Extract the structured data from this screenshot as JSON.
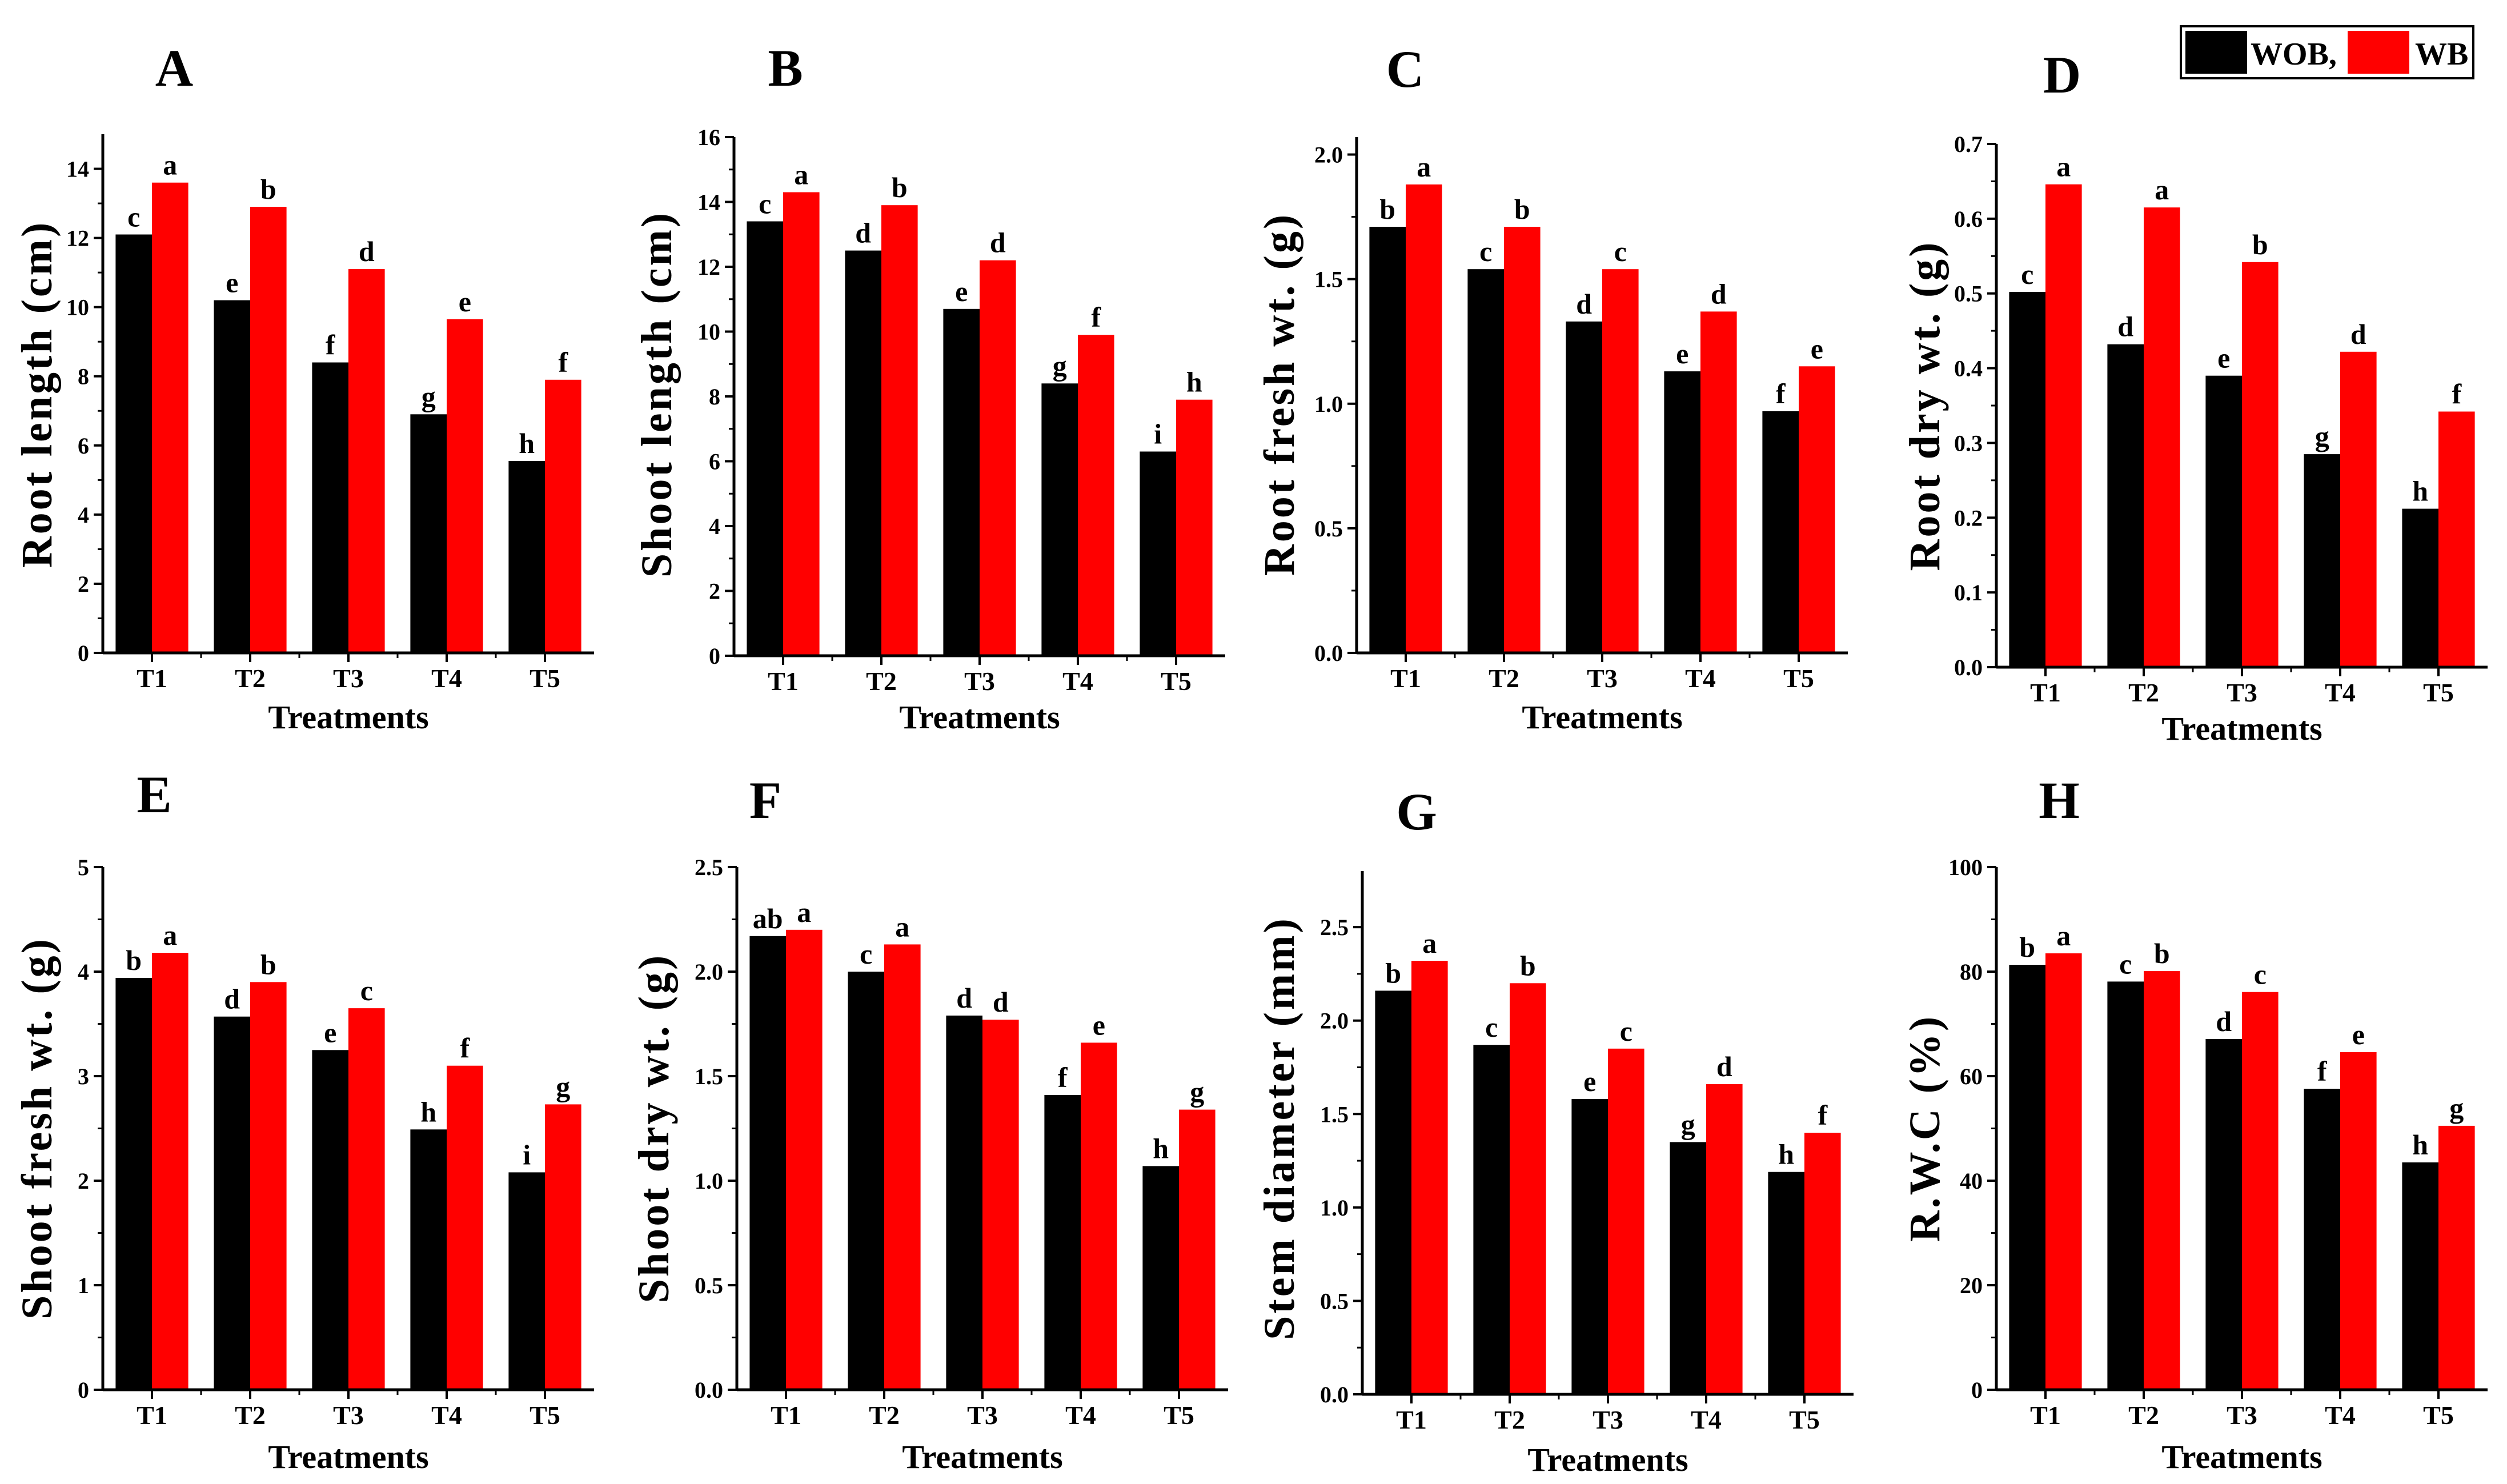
{
  "colors": {
    "WOB": "#000000",
    "WB": "#ff0000"
  },
  "legend": {
    "items": [
      {
        "label": "WOB,",
        "color": "#000000"
      },
      {
        "label": "WB",
        "color": "#ff0000"
      }
    ]
  },
  "chart_data": [
    {
      "type": "bar",
      "panel": "A",
      "categories": [
        "T1",
        "T2",
        "T3",
        "T4",
        "T5"
      ],
      "series": [
        {
          "name": "WOB,",
          "values": [
            12.1,
            10.2,
            8.4,
            6.9,
            5.55
          ],
          "letters": [
            "c",
            "e",
            "f",
            "g",
            "h"
          ]
        },
        {
          "name": "WB",
          "values": [
            13.6,
            12.9,
            11.1,
            9.65,
            7.9
          ],
          "letters": [
            "a",
            "b",
            "d",
            "e",
            "f"
          ]
        }
      ],
      "ylabel": "Root length (cm)",
      "xlabel": "Treatments",
      "ylim": [
        0,
        15
      ],
      "yticks": [
        0,
        2,
        4,
        6,
        8,
        10,
        12,
        14
      ],
      "ytick_labels": [
        "0",
        "2",
        "4",
        "6",
        "8",
        "10",
        "12",
        "14"
      ]
    },
    {
      "type": "bar",
      "panel": "B",
      "categories": [
        "T1",
        "T2",
        "T3",
        "T4",
        "T5"
      ],
      "series": [
        {
          "name": "WOB,",
          "values": [
            13.4,
            12.5,
            10.7,
            8.4,
            6.3
          ],
          "letters": [
            "c",
            "d",
            "e",
            "g",
            "i"
          ]
        },
        {
          "name": "WB",
          "values": [
            14.3,
            13.9,
            12.2,
            9.9,
            7.9
          ],
          "letters": [
            "a",
            "b",
            "d",
            "f",
            "h"
          ]
        }
      ],
      "ylabel": "Shoot length (cm)",
      "xlabel": "Treatments",
      "ylim": [
        0,
        16
      ],
      "yticks": [
        0,
        2,
        4,
        6,
        8,
        10,
        12,
        14,
        16
      ],
      "ytick_labels": [
        "0",
        "2",
        "4",
        "6",
        "8",
        "10",
        "12",
        "14",
        "16"
      ]
    },
    {
      "type": "bar",
      "panel": "C",
      "categories": [
        "T1",
        "T2",
        "T3",
        "T4",
        "T5"
      ],
      "series": [
        {
          "name": "WOB,",
          "values": [
            1.71,
            1.54,
            1.33,
            1.13,
            0.97
          ],
          "letters": [
            "b",
            "c",
            "d",
            "e",
            "f"
          ]
        },
        {
          "name": "WB",
          "values": [
            1.88,
            1.71,
            1.54,
            1.37,
            1.15
          ],
          "letters": [
            "a",
            "b",
            "c",
            "d",
            "e"
          ]
        }
      ],
      "ylabel": "Root fresh wt. (g)",
      "xlabel": "Treatments",
      "ylim": [
        0,
        2.07
      ],
      "yticks": [
        0,
        0.5,
        1.0,
        1.5,
        2.0
      ],
      "ytick_labels": [
        "0.0",
        "0.5",
        "1.0",
        "1.5",
        "2.0"
      ]
    },
    {
      "type": "bar",
      "panel": "D",
      "categories": [
        "T1",
        "T2",
        "T3",
        "T4",
        "T5"
      ],
      "series": [
        {
          "name": "WOB,",
          "values": [
            0.502,
            0.432,
            0.39,
            0.285,
            0.212
          ],
          "letters": [
            "c",
            "d",
            "e",
            "g",
            "h"
          ]
        },
        {
          "name": "WB",
          "values": [
            0.646,
            0.615,
            0.542,
            0.422,
            0.342
          ],
          "letters": [
            "a",
            "a",
            "b",
            "d",
            "f"
          ]
        }
      ],
      "ylabel": "Root dry wt. (g)",
      "xlabel": "Treatments",
      "ylim": [
        0,
        0.7
      ],
      "yticks": [
        0,
        0.1,
        0.2,
        0.3,
        0.4,
        0.5,
        0.6,
        0.7
      ],
      "ytick_labels": [
        "0.0",
        "0.1",
        "0.2",
        "0.3",
        "0.4",
        "0.5",
        "0.6",
        "0.7"
      ]
    },
    {
      "type": "bar",
      "panel": "E",
      "categories": [
        "T1",
        "T2",
        "T3",
        "T4",
        "T5"
      ],
      "series": [
        {
          "name": "WOB,",
          "values": [
            3.94,
            3.57,
            3.25,
            2.49,
            2.08
          ],
          "letters": [
            "b",
            "d",
            "e",
            "h",
            "i"
          ]
        },
        {
          "name": "WB",
          "values": [
            4.18,
            3.9,
            3.65,
            3.1,
            2.73
          ],
          "letters": [
            "a",
            "b",
            "c",
            "f",
            "g"
          ]
        }
      ],
      "ylabel": "Shoot fresh wt. (g)",
      "xlabel": "Treatments",
      "ylim": [
        0,
        5
      ],
      "yticks": [
        0,
        1,
        2,
        3,
        4,
        5
      ],
      "ytick_labels": [
        "0",
        "1",
        "2",
        "3",
        "4",
        "5"
      ]
    },
    {
      "type": "bar",
      "panel": "F",
      "categories": [
        "T1",
        "T2",
        "T3",
        "T4",
        "T5"
      ],
      "series": [
        {
          "name": "WOB,",
          "values": [
            2.17,
            2.0,
            1.79,
            1.41,
            1.07
          ],
          "letters": [
            "ab",
            "c",
            "d",
            "f",
            "h"
          ]
        },
        {
          "name": "WB",
          "values": [
            2.2,
            2.13,
            1.77,
            1.66,
            1.34
          ],
          "letters": [
            "a",
            "a",
            "d",
            "e",
            "g"
          ]
        }
      ],
      "ylabel": "Shoot dry wt. (g)",
      "xlabel": "Treatments",
      "ylim": [
        0,
        2.5
      ],
      "yticks": [
        0,
        0.5,
        1.0,
        1.5,
        2.0,
        2.5
      ],
      "ytick_labels": [
        "0.0",
        "0.5",
        "1.0",
        "1.5",
        "2.0",
        "2.5"
      ]
    },
    {
      "type": "bar",
      "panel": "G",
      "categories": [
        "T1",
        "T2",
        "T3",
        "T4",
        "T5"
      ],
      "series": [
        {
          "name": "WOB,",
          "values": [
            2.16,
            1.87,
            1.58,
            1.35,
            1.19
          ],
          "letters": [
            "b",
            "c",
            "e",
            "g",
            "h"
          ]
        },
        {
          "name": "WB",
          "values": [
            2.32,
            2.2,
            1.85,
            1.66,
            1.4
          ],
          "letters": [
            "a",
            "b",
            "c",
            "d",
            "f"
          ]
        }
      ],
      "ylabel": "Stem diameter (mm)",
      "xlabel": "Treatments",
      "ylim": [
        0,
        2.8
      ],
      "yticks": [
        0,
        0.5,
        1.0,
        1.5,
        2.0,
        2.5
      ],
      "ytick_labels": [
        "0.0",
        "0.5",
        "1.0",
        "1.5",
        "2.0",
        "2.5"
      ]
    },
    {
      "type": "bar",
      "panel": "H",
      "categories": [
        "T1",
        "T2",
        "T3",
        "T4",
        "T5"
      ],
      "series": [
        {
          "name": "WOB,",
          "values": [
            81.3,
            78.1,
            67.1,
            57.6,
            43.5
          ],
          "letters": [
            "b",
            "c",
            "d",
            "f",
            "h"
          ]
        },
        {
          "name": "WB",
          "values": [
            83.5,
            80.1,
            76.1,
            64.6,
            50.5
          ],
          "letters": [
            "a",
            "b",
            "c",
            "e",
            "g"
          ]
        }
      ],
      "ylabel": "R.W.C (%)",
      "xlabel": "Treatments",
      "ylim": [
        0,
        100
      ],
      "yticks": [
        0,
        20,
        40,
        60,
        80,
        100
      ],
      "ytick_labels": [
        "0",
        "20",
        "40",
        "60",
        "80",
        "100"
      ]
    }
  ]
}
